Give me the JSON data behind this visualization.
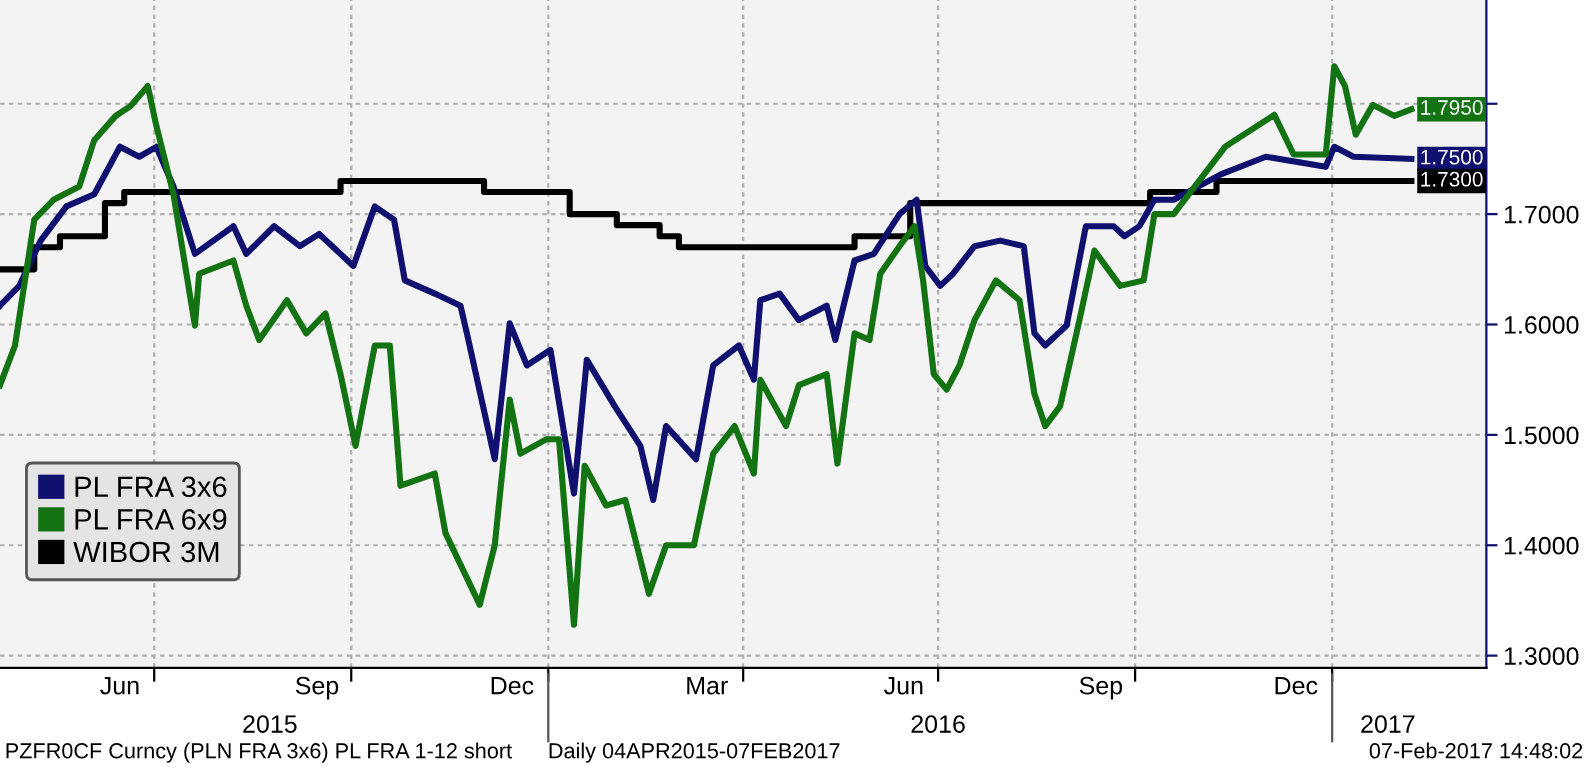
{
  "chart_data": {
    "type": "line",
    "xlim": [
      "2015-04-20",
      "2017-03-14"
    ],
    "ylim": [
      1.289,
      1.894
    ],
    "xticks": [
      {
        "value": "2015-06-15",
        "label": "Jun"
      },
      {
        "value": "2015-07-01",
        "label": null
      },
      {
        "value": "2015-09-15",
        "label": "Sep"
      },
      {
        "value": "2015-10-01",
        "label": null
      },
      {
        "value": "2015-12-15",
        "label": "Dec"
      },
      {
        "value": "2016-01-01",
        "label": null
      },
      {
        "value": "2016-03-15",
        "label": "Mar"
      },
      {
        "value": "2016-04-01",
        "label": null
      },
      {
        "value": "2016-06-15",
        "label": "Jun"
      },
      {
        "value": "2016-07-01",
        "label": null
      },
      {
        "value": "2016-09-15",
        "label": "Sep"
      },
      {
        "value": "2016-10-01",
        "label": null
      },
      {
        "value": "2016-12-15",
        "label": "Dec"
      },
      {
        "value": "2017-01-01",
        "label": null
      }
    ],
    "x2lim": [
      "2015-04-20",
      "2017-03-14"
    ],
    "x2ticks": [
      {
        "value": "2015-08-24",
        "label": "2015"
      },
      {
        "value": "2016-01-01",
        "label": null
      },
      {
        "value": "2016-07-01",
        "label": "2016"
      },
      {
        "value": "2017-01-01",
        "label": null
      },
      {
        "value": "2017-01-27",
        "label": "2017"
      }
    ],
    "yticks": [
      {
        "value": 1.3,
        "label": "1.3000"
      },
      {
        "value": 1.4,
        "label": "1.4000"
      },
      {
        "value": 1.5,
        "label": "1.5000"
      },
      {
        "value": 1.6,
        "label": "1.6000"
      },
      {
        "value": 1.7,
        "label": "1.7000"
      },
      {
        "value": 1.8,
        "label": null
      }
    ],
    "grid": true,
    "legend": "bottom left",
    "series": [
      {
        "name": "PL FRA 3x6",
        "color": "#10106e",
        "x": [
          "2015-04-20",
          "2015-04-29",
          "2015-05-09",
          "2015-05-21",
          "2015-06-03",
          "2015-06-15",
          "2015-06-24",
          "2015-07-02",
          "2015-07-10",
          "2015-07-20",
          "2015-08-07",
          "2015-08-13",
          "2015-08-26",
          "2015-09-07",
          "2015-09-16",
          "2015-10-02",
          "2015-10-12",
          "2015-10-21",
          "2015-10-26",
          "2015-11-09",
          "2015-11-21",
          "2015-11-24",
          "2015-12-07",
          "2015-12-14",
          "2015-12-22",
          "2016-01-02",
          "2016-01-13",
          "2016-01-19",
          "2016-02-01",
          "2016-02-13",
          "2016-02-19",
          "2016-02-25",
          "2016-03-10",
          "2016-03-18",
          "2016-03-30",
          "2016-04-06",
          "2016-04-09",
          "2016-04-18",
          "2016-04-27",
          "2016-05-10",
          "2016-05-14",
          "2016-05-23",
          "2016-06-01",
          "2016-06-13",
          "2016-06-21",
          "2016-06-25",
          "2016-07-02",
          "2016-07-08",
          "2016-07-18",
          "2016-07-30",
          "2016-08-10",
          "2016-08-15",
          "2016-08-20",
          "2016-08-30",
          "2016-09-08",
          "2016-09-21",
          "2016-09-26",
          "2016-10-03",
          "2016-10-10",
          "2016-10-19",
          "2016-11-10",
          "2016-12-01",
          "2016-12-29",
          "2017-01-02",
          "2017-01-11",
          "2017-02-07"
        ],
        "values": [
          1.617,
          1.635,
          1.676,
          1.707,
          1.718,
          1.761,
          1.752,
          1.761,
          1.725,
          1.664,
          1.689,
          1.664,
          1.689,
          1.671,
          1.682,
          1.653,
          1.707,
          1.695,
          1.64,
          1.628,
          1.617,
          1.592,
          1.478,
          1.601,
          1.563,
          1.577,
          1.447,
          1.568,
          1.526,
          1.49,
          1.441,
          1.508,
          1.478,
          1.563,
          1.581,
          1.55,
          1.622,
          1.628,
          1.604,
          1.617,
          1.586,
          1.658,
          1.664,
          1.7,
          1.713,
          1.653,
          1.635,
          1.646,
          1.671,
          1.676,
          1.671,
          1.592,
          1.581,
          1.599,
          1.689,
          1.689,
          1.68,
          1.689,
          1.713,
          1.713,
          1.736,
          1.752,
          1.743,
          1.761,
          1.752,
          1.75
        ],
        "value_labels": [
          null,
          null,
          null,
          null,
          null,
          null,
          null,
          null,
          null,
          null,
          null,
          null,
          null,
          null,
          null,
          null,
          null,
          null,
          null,
          null,
          null,
          null,
          null,
          null,
          null,
          null,
          null,
          null,
          null,
          null,
          null,
          null,
          null,
          null,
          null,
          null,
          null,
          null,
          null,
          null,
          null,
          null,
          null,
          null,
          null,
          null,
          null,
          null,
          null,
          null,
          null,
          null,
          null,
          null,
          null,
          null,
          null,
          null,
          null,
          null,
          null,
          null,
          null,
          null,
          null,
          "1.7500"
        ]
      },
      {
        "name": "PL FRA 6x9",
        "color": "#137313",
        "x": [
          "2015-04-20",
          "2015-04-27",
          "2015-05-06",
          "2015-05-15",
          "2015-05-27",
          "2015-06-03",
          "2015-06-13",
          "2015-06-20",
          "2015-06-28",
          "2015-07-02",
          "2015-07-10",
          "2015-07-20",
          "2015-07-22",
          "2015-08-07",
          "2015-08-13",
          "2015-08-19",
          "2015-09-01",
          "2015-09-10",
          "2015-09-19",
          "2015-09-26",
          "2015-10-03",
          "2015-10-12",
          "2015-10-19",
          "2015-10-24",
          "2015-11-09",
          "2015-11-14",
          "2015-11-30",
          "2015-12-07",
          "2015-12-14",
          "2015-12-19",
          "2015-12-31",
          "2016-01-06",
          "2016-01-13",
          "2016-01-18",
          "2016-01-28",
          "2016-02-06",
          "2016-02-17",
          "2016-02-25",
          "2016-03-09",
          "2016-03-18",
          "2016-03-28",
          "2016-04-06",
          "2016-04-09",
          "2016-04-21",
          "2016-04-27",
          "2016-05-10",
          "2016-05-15",
          "2016-05-23",
          "2016-05-30",
          "2016-06-04",
          "2016-06-13",
          "2016-06-20",
          "2016-06-24",
          "2016-06-29",
          "2016-07-05",
          "2016-07-11",
          "2016-07-18",
          "2016-07-28",
          "2016-08-08",
          "2016-08-15",
          "2016-08-20",
          "2016-08-27",
          "2016-09-05",
          "2016-09-12",
          "2016-09-24",
          "2016-10-05",
          "2016-10-10",
          "2016-10-19",
          "2016-11-12",
          "2016-12-05",
          "2016-12-14",
          "2016-12-29",
          "2017-01-02",
          "2017-01-07",
          "2017-01-12",
          "2017-01-20",
          "2017-01-30",
          "2017-02-07"
        ],
        "values": [
          1.545,
          1.581,
          1.695,
          1.713,
          1.725,
          1.767,
          1.789,
          1.798,
          1.816,
          1.78,
          1.718,
          1.599,
          1.646,
          1.658,
          1.617,
          1.586,
          1.622,
          1.592,
          1.61,
          1.555,
          1.49,
          1.581,
          1.581,
          1.454,
          1.465,
          1.411,
          1.346,
          1.4,
          1.532,
          1.483,
          1.496,
          1.496,
          1.328,
          1.472,
          1.436,
          1.441,
          1.356,
          1.4,
          1.4,
          1.483,
          1.508,
          1.465,
          1.55,
          1.508,
          1.545,
          1.555,
          1.474,
          1.592,
          1.586,
          1.646,
          1.671,
          1.689,
          1.64,
          1.555,
          1.541,
          1.563,
          1.604,
          1.64,
          1.622,
          1.537,
          1.508,
          1.526,
          1.604,
          1.667,
          1.635,
          1.64,
          1.7,
          1.7,
          1.761,
          1.79,
          1.754,
          1.754,
          1.834,
          1.816,
          1.772,
          1.799,
          1.789,
          1.795
        ],
        "value_labels": [
          null,
          null,
          null,
          null,
          null,
          null,
          null,
          null,
          null,
          null,
          null,
          null,
          null,
          null,
          null,
          null,
          null,
          null,
          null,
          null,
          null,
          null,
          null,
          null,
          null,
          null,
          null,
          null,
          null,
          null,
          null,
          null,
          null,
          null,
          null,
          null,
          null,
          null,
          null,
          null,
          null,
          null,
          null,
          null,
          null,
          null,
          null,
          null,
          null,
          null,
          null,
          null,
          null,
          null,
          null,
          null,
          null,
          null,
          null,
          null,
          null,
          null,
          null,
          null,
          null,
          null,
          null,
          null,
          null,
          null,
          null,
          null,
          null,
          null,
          null,
          null,
          null,
          "1.7950"
        ]
      },
      {
        "name": "WIBOR 3M",
        "type": "step",
        "color": "#000000",
        "x": [
          "2015-04-20",
          "2015-05-06",
          "2015-05-18",
          "2015-06-08",
          "2015-06-17",
          "2015-09-26",
          "2015-12-02",
          "2016-01-11",
          "2016-02-02",
          "2016-02-22",
          "2016-03-02",
          "2016-05-23",
          "2016-06-18",
          "2016-10-08",
          "2016-11-08",
          "2017-02-07"
        ],
        "values": [
          1.65,
          1.67,
          1.68,
          1.71,
          1.72,
          1.73,
          1.72,
          1.7,
          1.69,
          1.68,
          1.67,
          1.68,
          1.71,
          1.72,
          1.73,
          1.73
        ],
        "value_labels": [
          null,
          null,
          null,
          null,
          null,
          null,
          null,
          null,
          null,
          null,
          null,
          null,
          null,
          null,
          null,
          "1.7300"
        ]
      }
    ],
    "annotations": [
      "PZFR0CF Curncy (PLN FRA 3x6) PL FRA 1-12 short",
      "Daily 04APR2015-07FEB2017",
      "07-Feb-2017 14:48:02"
    ]
  }
}
